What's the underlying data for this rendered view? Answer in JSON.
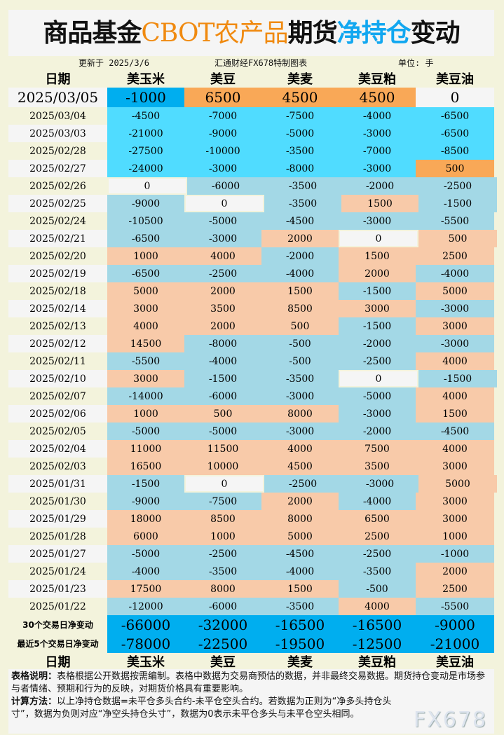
{
  "title": {
    "part1": "商品基金",
    "part2": "CBOT农产品",
    "part3": "期货",
    "part4": "净持仓",
    "part5": "变动"
  },
  "info": {
    "updated": "更新于 2025/3/6",
    "source": "汇通财经FX678特制图表",
    "unit": "单位: 手"
  },
  "columns": [
    "日期",
    "美玉米",
    "美豆",
    "美麦",
    "美豆粕",
    "美豆油"
  ],
  "colors": {
    "bright_neg": "#50dcff",
    "bright_pos": "#f9a857",
    "neg": "#a3d8e6",
    "pos": "#f8caa9",
    "zero": "#f5f5f5",
    "summary": "#00aeef",
    "latest_neg": "#00aeef"
  },
  "latest": {
    "date": "2025/03/05",
    "values": [
      -1000,
      6500,
      4500,
      4500,
      0
    ]
  },
  "rows": [
    {
      "date": "2025/03/04",
      "values": [
        -4500,
        -7000,
        -7500,
        -4000,
        -6500
      ]
    },
    {
      "date": "2025/03/03",
      "values": [
        -21000,
        -9000,
        -5000,
        -3000,
        -6500
      ]
    },
    {
      "date": "2025/02/28",
      "values": [
        -27500,
        -10000,
        -3500,
        -7000,
        -8500
      ]
    },
    {
      "date": "2025/02/27",
      "values": [
        -24000,
        -3000,
        -8000,
        -3000,
        500
      ]
    },
    {
      "date": "2025/02/26",
      "values": [
        0,
        -6000,
        -3500,
        -2000,
        -2500
      ]
    },
    {
      "date": "2025/02/25",
      "values": [
        -9000,
        0,
        -3500,
        1500,
        -1500
      ]
    },
    {
      "date": "2025/02/24",
      "values": [
        -10500,
        -5000,
        -4500,
        -3000,
        -5500
      ]
    },
    {
      "date": "2025/02/21",
      "values": [
        -6500,
        -3000,
        2000,
        0,
        500
      ]
    },
    {
      "date": "2025/02/20",
      "values": [
        1000,
        4000,
        -2000,
        1500,
        2500
      ]
    },
    {
      "date": "2025/02/19",
      "values": [
        -6500,
        -2500,
        -4000,
        2000,
        -4000
      ]
    },
    {
      "date": "2025/02/18",
      "values": [
        5000,
        2000,
        1500,
        -1500,
        5000
      ]
    },
    {
      "date": "2025/02/14",
      "values": [
        3000,
        3500,
        8500,
        3000,
        -3000
      ]
    },
    {
      "date": "2025/02/13",
      "values": [
        4000,
        2000,
        500,
        -1500,
        3000
      ]
    },
    {
      "date": "2025/02/12",
      "values": [
        14500,
        -8000,
        -500,
        -2000,
        -3000
      ]
    },
    {
      "date": "2025/02/11",
      "values": [
        -5500,
        -4000,
        -500,
        -2500,
        4000
      ]
    },
    {
      "date": "2025/02/10",
      "values": [
        3000,
        -1500,
        -3500,
        0,
        -1500
      ]
    },
    {
      "date": "2025/02/07",
      "values": [
        -14000,
        -6000,
        -3000,
        -5000,
        4000
      ]
    },
    {
      "date": "2025/02/06",
      "values": [
        1000,
        500,
        8000,
        -3000,
        1500
      ]
    },
    {
      "date": "2025/02/05",
      "values": [
        -5000,
        -5000,
        -3000,
        -2000,
        -4500
      ]
    },
    {
      "date": "2025/02/04",
      "values": [
        11000,
        11500,
        4000,
        7500,
        4000
      ]
    },
    {
      "date": "2025/02/03",
      "values": [
        16500,
        10000,
        4500,
        3500,
        3000
      ]
    },
    {
      "date": "2025/01/31",
      "values": [
        -1500,
        0,
        -2500,
        -3000,
        5000
      ]
    },
    {
      "date": "2025/01/30",
      "values": [
        -9000,
        -7500,
        2000,
        -4000,
        3000
      ]
    },
    {
      "date": "2025/01/29",
      "values": [
        18000,
        8500,
        8000,
        6500,
        3000
      ]
    },
    {
      "date": "2025/01/28",
      "values": [
        6000,
        1000,
        5000,
        2500,
        1000
      ]
    },
    {
      "date": "2025/01/27",
      "values": [
        -5000,
        -2500,
        -4500,
        -2500,
        -1000
      ]
    },
    {
      "date": "2025/01/24",
      "values": [
        -4000,
        -3500,
        -4000,
        -3500,
        2000
      ]
    },
    {
      "date": "2025/01/23",
      "values": [
        17500,
        8000,
        1500,
        -500,
        2500
      ]
    },
    {
      "date": "2025/01/22",
      "values": [
        -12000,
        -6000,
        -3500,
        4000,
        -5500
      ]
    }
  ],
  "summary": [
    {
      "label": "30个交易日净变动",
      "values": [
        -66000,
        -32000,
        -16500,
        -16500,
        -9000
      ]
    },
    {
      "label": "最近5个交易日净变动",
      "values": [
        -78000,
        -22500,
        -19500,
        -12500,
        -21000
      ]
    }
  ],
  "notes": {
    "label1": "表格说明：",
    "text1": "表格根据公开数据按需编制。表格中数据为交易商预估的数据，并非最终交易数据。期货持仓变动是市场参与者情绪、预期和行为的反映，对期货价格具有重要影响。",
    "label2": "计算方法：",
    "text2": "以上净持仓数据=未平仓多头合约-未平仓空头合约。若数据为正则为“净多头持仓头寸”，数据为负则对应“净空头持仓头寸”，数据为0表示未平仓多头与未平仓空头相同。"
  },
  "watermark": "FX678"
}
